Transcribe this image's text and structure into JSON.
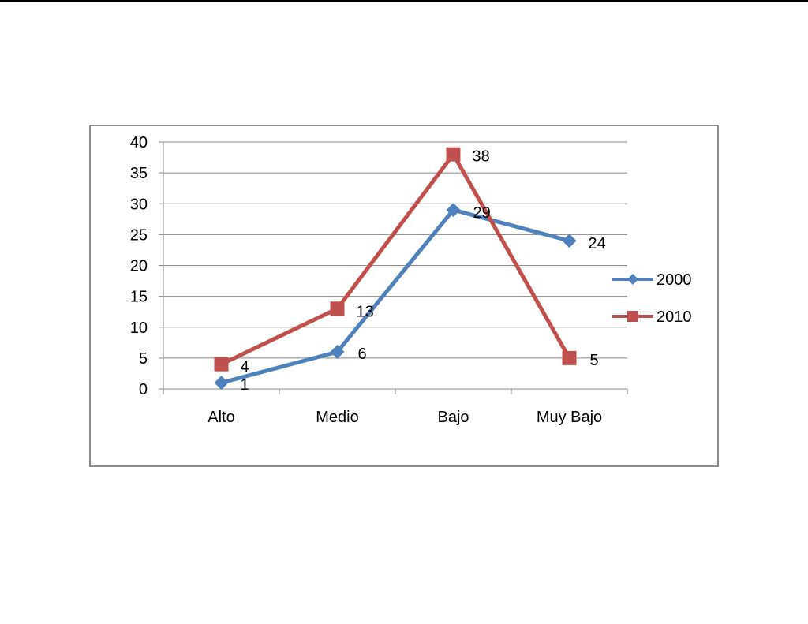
{
  "chart_data": {
    "type": "line",
    "categories": [
      "Alto",
      "Medio",
      "Bajo",
      "Muy Bajo"
    ],
    "series": [
      {
        "name": "2000",
        "values": [
          1,
          6,
          29,
          24
        ],
        "color": "#4f81bd",
        "marker": "diamond"
      },
      {
        "name": "2010",
        "values": [
          4,
          13,
          38,
          5
        ],
        "color": "#c0504d",
        "marker": "square"
      }
    ],
    "ylim": [
      0,
      40
    ],
    "yticks": [
      0,
      5,
      10,
      15,
      20,
      25,
      30,
      35,
      40
    ],
    "grid": true,
    "legend": "right",
    "title": "",
    "xlabel": "",
    "ylabel": ""
  }
}
